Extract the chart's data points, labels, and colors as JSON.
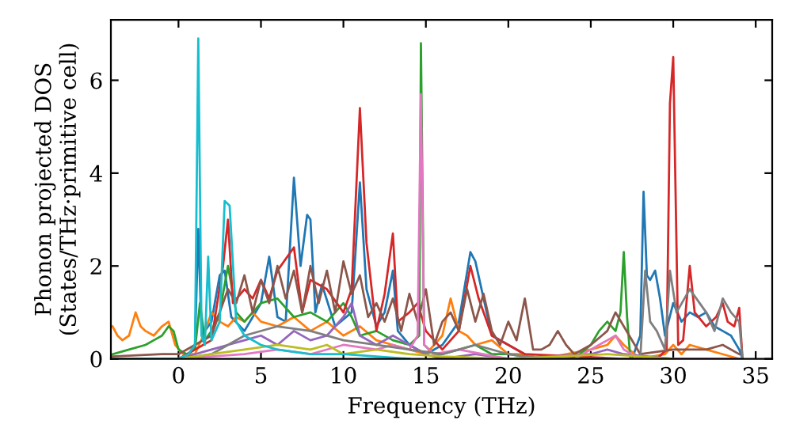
{
  "chart_data": {
    "type": "line",
    "xlabel": "Frequency (THz)",
    "ylabel": "Phonon projected DOS\n(States/THz·primitive cell)",
    "xlim": [
      -4.1,
      36
    ],
    "ylim": [
      0,
      7.3
    ],
    "xticks": [
      0,
      5,
      10,
      15,
      20,
      25,
      30,
      35
    ],
    "yticks": [
      0,
      2,
      4,
      6
    ],
    "grid": false,
    "legend": false,
    "marker": "none",
    "line_style": "solid",
    "series": [
      {
        "color": "#1f77b4",
        "x": [
          -4,
          0,
          0.6,
          1,
          1.2,
          1.4,
          2,
          2.5,
          2.8,
          3.2,
          4,
          5,
          5.5,
          6,
          6.5,
          7,
          7.4,
          7.8,
          8,
          8.3,
          8.7,
          9.5,
          10.5,
          11,
          11.4,
          12,
          12.5,
          13,
          13.3,
          14,
          15,
          16,
          17,
          17.7,
          18,
          19,
          20,
          21,
          22,
          27.5,
          28,
          28.2,
          28.4,
          28.6,
          28.9,
          29.2,
          29.5,
          30,
          30.5,
          31,
          31.5,
          32,
          32.5,
          33,
          33.5,
          34,
          34.2
        ],
        "values": [
          0,
          0,
          0.1,
          0.3,
          2.8,
          0.5,
          0.8,
          1.8,
          1.9,
          0.9,
          0.6,
          1.2,
          2.2,
          0.9,
          0.8,
          3.9,
          2.0,
          3.1,
          3.0,
          1.0,
          1.6,
          0.7,
          1.0,
          3.8,
          1.5,
          0.7,
          1.0,
          1.9,
          0.6,
          0.3,
          0.1,
          0.3,
          0.8,
          2.3,
          2.1,
          0.5,
          0.3,
          0.1,
          0,
          0,
          0.5,
          3.6,
          1.8,
          1.7,
          1.9,
          1.3,
          0.5,
          1.2,
          0.8,
          1.0,
          0.9,
          1.0,
          0.7,
          0.6,
          0.5,
          0.2,
          0
        ]
      },
      {
        "color": "#ff7f0e",
        "x": [
          -4,
          -3.7,
          -3.4,
          -3,
          -2.6,
          -2.3,
          -2,
          -1.5,
          -1,
          -0.6,
          -0.2,
          0.3,
          1,
          1.5,
          2,
          2.5,
          3,
          3.5,
          4,
          4.5,
          5,
          6,
          7,
          8,
          9,
          10,
          11,
          12,
          13,
          14,
          15,
          16,
          16.5,
          17,
          17.5,
          18,
          19,
          20,
          21,
          22,
          25,
          26,
          26.5,
          27,
          28,
          29.5,
          30,
          30.5,
          31,
          32,
          33,
          34
        ],
        "values": [
          0.7,
          0.5,
          0.4,
          0.5,
          1.0,
          0.7,
          0.6,
          0.5,
          0.7,
          0.8,
          0.3,
          0.1,
          0.1,
          0.5,
          1.0,
          0.8,
          0.7,
          0.9,
          0.8,
          1.0,
          0.8,
          0.7,
          0.9,
          0.6,
          0.8,
          0.5,
          0.7,
          0.4,
          0.3,
          0.2,
          0.1,
          0.5,
          1.3,
          0.6,
          0.5,
          0.3,
          0.4,
          0.1,
          0.1,
          0,
          0.2,
          0.3,
          0.5,
          0.3,
          0,
          0.1,
          0.3,
          0.1,
          0.3,
          0.2,
          0.1,
          0
        ]
      },
      {
        "color": "#2ca02c",
        "x": [
          -4,
          -3,
          -2,
          -1.5,
          -1,
          -0.6,
          -0.3,
          0,
          0.5,
          1,
          1.3,
          1.6,
          2,
          2.5,
          3,
          3.5,
          4,
          5,
          6,
          7,
          8,
          9,
          10,
          10.5,
          11,
          12,
          13,
          14,
          14.6,
          14.7,
          14.9,
          15.5,
          16,
          17,
          18,
          19,
          20,
          22,
          24,
          25,
          25.5,
          26,
          26.5,
          26.8,
          27,
          27.2,
          27.4,
          28
        ],
        "values": [
          0.1,
          0.2,
          0.3,
          0.4,
          0.5,
          0.7,
          0.6,
          0.2,
          0.1,
          0.2,
          1.2,
          0.4,
          0.6,
          1.0,
          2.0,
          1.0,
          0.8,
          1.2,
          1.3,
          0.9,
          1.0,
          0.8,
          1.2,
          0.9,
          0.5,
          0.6,
          0.4,
          0.3,
          0.5,
          6.8,
          0.3,
          0.1,
          0.1,
          0.2,
          0.3,
          0.1,
          0.1,
          0,
          0,
          0.3,
          0.6,
          0.8,
          0.6,
          1.0,
          2.3,
          0.9,
          0,
          0
        ]
      },
      {
        "color": "#d62728",
        "x": [
          -4,
          0,
          1,
          2,
          2.7,
          3,
          3.3,
          4,
          4.5,
          5,
          5.5,
          6,
          7,
          7.5,
          8,
          9,
          10,
          10.5,
          11,
          11.4,
          12,
          12.5,
          13,
          13.3,
          14,
          14.5,
          15,
          16,
          17,
          17.7,
          18.2,
          19,
          20,
          21,
          27,
          28,
          29,
          29.6,
          29.8,
          30,
          30.3,
          30.6,
          31,
          31.3,
          32,
          32.6,
          33,
          33.3,
          33.7,
          34,
          34.2
        ],
        "values": [
          0,
          0,
          0.2,
          0.4,
          2.0,
          3.0,
          1.2,
          1.5,
          1.3,
          1.7,
          1.3,
          1.9,
          2.4,
          1.0,
          1.7,
          1.5,
          1.0,
          1.5,
          5.4,
          2.5,
          0.6,
          1.4,
          2.7,
          0.8,
          1.0,
          1.2,
          0.6,
          0.2,
          0.6,
          2.0,
          1.3,
          0.5,
          0.3,
          0.1,
          0,
          0,
          0,
          0.2,
          5.5,
          6.5,
          0.3,
          0.4,
          2.0,
          1.0,
          0.7,
          0.9,
          1.2,
          0.8,
          0.7,
          1.1,
          0
        ]
      },
      {
        "color": "#9467bd",
        "x": [
          -4,
          0,
          1,
          2,
          3,
          4,
          5,
          6,
          7,
          8,
          9,
          10,
          10.5,
          11,
          12,
          13,
          14,
          15,
          16,
          18,
          20,
          25,
          26,
          27,
          30,
          34
        ],
        "values": [
          0,
          0,
          0.1,
          0.2,
          0.3,
          0.4,
          0.5,
          0.3,
          0.6,
          0.4,
          0.5,
          0.9,
          1.2,
          0.5,
          0.3,
          0.5,
          0.3,
          0.1,
          0,
          0.1,
          0,
          0.1,
          0.2,
          0.1,
          0,
          0
        ]
      },
      {
        "color": "#8c564b",
        "x": [
          -4,
          -1,
          0,
          1,
          2,
          3,
          3.5,
          4,
          4.5,
          5,
          5.5,
          6,
          6.5,
          7,
          7.5,
          8,
          8.5,
          9,
          9.5,
          10,
          10.5,
          11,
          11.5,
          12,
          12.5,
          13,
          13.5,
          14,
          14.5,
          15,
          15.5,
          16,
          16.5,
          17,
          17.5,
          18,
          18.5,
          19,
          19.5,
          20,
          20.5,
          21,
          21.5,
          22,
          22.5,
          23,
          23.5,
          24,
          25,
          26,
          26.5,
          27,
          28,
          30,
          32,
          33,
          34
        ],
        "values": [
          0.05,
          0.1,
          0.1,
          0.3,
          0.5,
          1.5,
          1.2,
          1.8,
          1.0,
          1.7,
          1.2,
          2.0,
          1.3,
          1.9,
          1.0,
          2.0,
          1.2,
          1.9,
          1.0,
          2.1,
          1.4,
          1.8,
          0.9,
          1.2,
          0.8,
          1.3,
          0.6,
          1.4,
          0.8,
          1.5,
          0.3,
          0.8,
          1.0,
          0.6,
          1.5,
          0.8,
          1.4,
          0.6,
          0.3,
          0.8,
          0.4,
          1.3,
          0.2,
          0.2,
          0.3,
          0.6,
          0.3,
          0.1,
          0.3,
          0.6,
          1.0,
          0.7,
          0.1,
          0.2,
          0.2,
          0.3,
          0.1
        ]
      },
      {
        "color": "#e377c2",
        "x": [
          -4,
          0,
          2,
          4,
          6,
          8,
          10,
          12,
          13,
          14,
          14.5,
          14.7,
          14.9,
          15.5,
          17,
          20,
          24,
          25,
          26,
          26.5,
          27,
          28,
          30,
          34
        ],
        "values": [
          0,
          0,
          0.05,
          0.1,
          0.2,
          0.1,
          0.3,
          0.2,
          0.3,
          0.2,
          0.5,
          5.7,
          0.3,
          0.1,
          0.2,
          0,
          0,
          0.2,
          0.4,
          0.5,
          0.2,
          0,
          0,
          0
        ]
      },
      {
        "color": "#7f7f7f",
        "x": [
          -4,
          0,
          2,
          4,
          6,
          8,
          10,
          12,
          14,
          16,
          18,
          20,
          22,
          26,
          27,
          28,
          28.3,
          28.6,
          29,
          29.5,
          29.8,
          30.2,
          31,
          32,
          32.5,
          33,
          33.5,
          34,
          34.2
        ],
        "values": [
          0,
          0,
          0.1,
          0.5,
          0.7,
          0.6,
          0.4,
          0.3,
          0.2,
          0.1,
          0.3,
          0.1,
          0,
          0,
          0,
          0,
          1.9,
          0.8,
          0.6,
          0.2,
          1.9,
          1.0,
          1.5,
          1.0,
          0.6,
          1.3,
          1.0,
          0.8,
          0
        ]
      },
      {
        "color": "#bcbd22",
        "x": [
          -4,
          0,
          2,
          4,
          6,
          8,
          9,
          10,
          12,
          14,
          16,
          20,
          26,
          30
        ],
        "values": [
          0,
          0,
          0.1,
          0.2,
          0.3,
          0.2,
          0.3,
          0.1,
          0.2,
          0.1,
          0.05,
          0,
          0.1,
          0
        ]
      },
      {
        "color": "#17becf",
        "x": [
          -4,
          0,
          0.6,
          1,
          1.2,
          1.4,
          1.6,
          1.8,
          2,
          2.5,
          2.8,
          3.1,
          3.5,
          4,
          5,
          6,
          8,
          10,
          12,
          14
        ],
        "values": [
          0,
          0,
          0.1,
          0.3,
          6.9,
          0.5,
          0.3,
          2.2,
          0.4,
          0.8,
          3.4,
          3.3,
          0.8,
          0.5,
          0.3,
          0.2,
          0.1,
          0.1,
          0.05,
          0
        ]
      }
    ]
  }
}
